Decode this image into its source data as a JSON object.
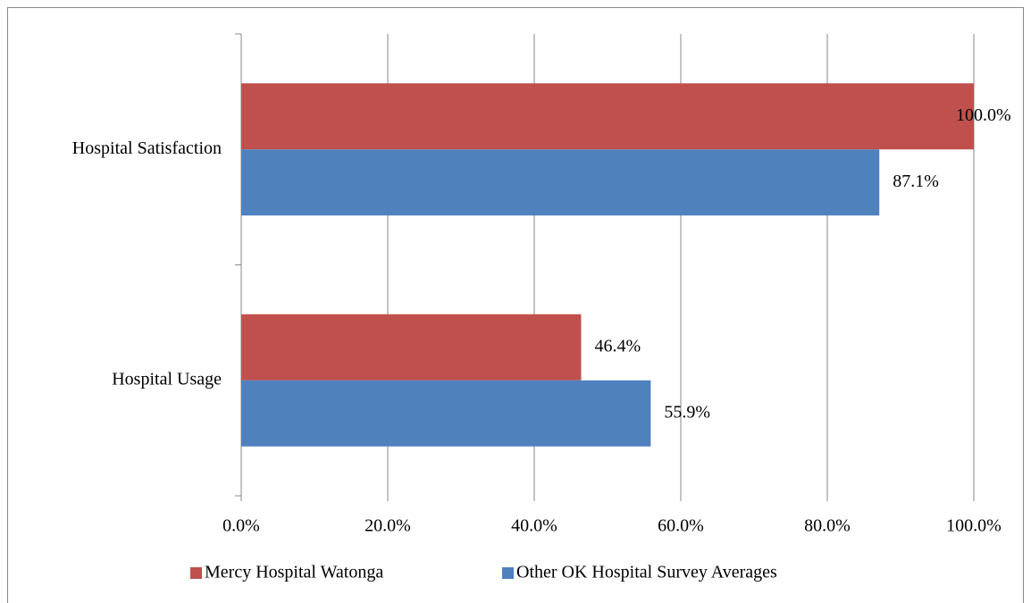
{
  "chart_data": {
    "type": "bar",
    "orientation": "horizontal",
    "categories": [
      "Hospital Satisfaction",
      "Hospital Usage"
    ],
    "series": [
      {
        "name": "Mercy Hospital Watonga",
        "color": "#c0504d",
        "values": [
          100,
          46.4
        ],
        "value_labels": [
          "100.0%",
          "46.4%"
        ]
      },
      {
        "name": "Other OK Hospital Survey Averages",
        "color": "#4f81bd",
        "values": [
          87.1,
          55.9
        ],
        "value_labels": [
          "87.1%",
          "55.9%"
        ]
      }
    ],
    "xlim": [
      0,
      100
    ],
    "xticks": [
      {
        "value": 0,
        "label": "0.0%"
      },
      {
        "value": 20,
        "label": "20.0%"
      },
      {
        "value": 40,
        "label": "40.0%"
      },
      {
        "value": 60,
        "label": "60.0%"
      },
      {
        "value": 80,
        "label": "80.0%"
      },
      {
        "value": 100,
        "label": "100.0%"
      }
    ],
    "grid": true,
    "legend": "bottom"
  }
}
